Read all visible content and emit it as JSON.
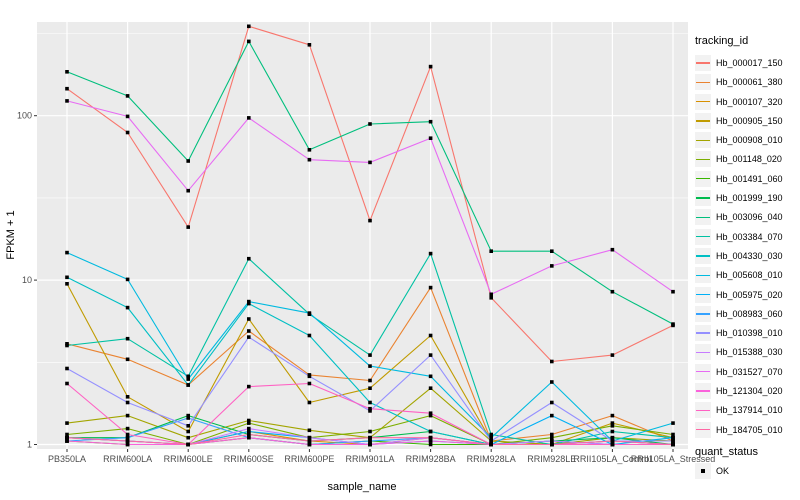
{
  "figure": {
    "panel_bg": "#EBEBEB",
    "grid_color": "#FFFFFF",
    "tick_color": "#333333",
    "axis_text_color": "#4D4D4D",
    "point_color": "#000000",
    "legend_key_bg": "#F2F2F2"
  },
  "chart_data": {
    "type": "line",
    "title": "",
    "xlabel": "sample_name",
    "ylabel": "FPKM + 1",
    "y_scale": "log10",
    "y_ticks": [
      "1",
      "10",
      "100"
    ],
    "y_tick_values": [
      1,
      10,
      100
    ],
    "y_minor_values": [
      3.1623,
      31.623,
      316.23
    ],
    "ylim": [
      0.93,
      380
    ],
    "grid": "on",
    "legend_position": "right",
    "categories": [
      "PB350LA",
      "RRIM600LA",
      "RRIM600LE",
      "RRIM600SE",
      "RRIM600PE",
      "RRIM901LA",
      "RRIM928BA",
      "RRIM928LA",
      "RRIM928LE",
      "RRII105LA_Control",
      "RRII105LA_Stressed"
    ],
    "series": [
      {
        "name": "Hb_000017_150",
        "color": "#F8766D",
        "values": [
          146,
          79,
          21,
          350,
          270,
          23,
          199,
          7.8,
          3.2,
          3.5,
          5.3
        ]
      },
      {
        "name": "Hb_000061_380",
        "color": "#EA8331",
        "values": [
          4.1,
          3.3,
          2.3,
          4.9,
          2.65,
          2.45,
          9.0,
          1.05,
          1.15,
          1.5,
          1.05
        ]
      },
      {
        "name": "Hb_000107_320",
        "color": "#D89000",
        "values": [
          1.1,
          1.05,
          1.0,
          1.2,
          1.05,
          1.0,
          1.1,
          1.0,
          1.0,
          1.05,
          1.0
        ]
      },
      {
        "name": "Hb_000905_150",
        "color": "#C09B00",
        "values": [
          9.5,
          1.95,
          1.2,
          5.8,
          1.8,
          2.2,
          4.6,
          1.05,
          1.0,
          1.35,
          1.1
        ]
      },
      {
        "name": "Hb_000908_010",
        "color": "#A3A500",
        "values": [
          1.35,
          1.5,
          1.1,
          1.4,
          1.22,
          1.1,
          2.2,
          1.05,
          1.0,
          1.1,
          1.05
        ]
      },
      {
        "name": "Hb_001148_020",
        "color": "#7CAE00",
        "values": [
          1.15,
          1.25,
          1.0,
          1.35,
          1.1,
          1.2,
          1.5,
          1.0,
          1.1,
          1.3,
          1.15
        ]
      },
      {
        "name": "Hb_001491_060",
        "color": "#39B600",
        "values": [
          1.05,
          1.0,
          1.0,
          1.1,
          1.0,
          1.05,
          1.0,
          1.0,
          1.0,
          1.0,
          1.0
        ]
      },
      {
        "name": "Hb_001999_190",
        "color": "#00BB4E",
        "values": [
          1.1,
          1.1,
          1.5,
          1.15,
          1.05,
          1.1,
          1.2,
          1.0,
          1.05,
          1.1,
          1.0
        ]
      },
      {
        "name": "Hb_003096_040",
        "color": "#00BF7D",
        "values": [
          185,
          132,
          53,
          283,
          62,
          89,
          92,
          15,
          15,
          8.5,
          5.4
        ]
      },
      {
        "name": "Hb_003384_070",
        "color": "#00C1A3",
        "values": [
          4.0,
          4.4,
          2.6,
          13.5,
          6.2,
          3.5,
          14.5,
          1.15,
          1.0,
          1.2,
          1.1
        ]
      },
      {
        "name": "Hb_004330_030",
        "color": "#00BFC4",
        "values": [
          10.4,
          6.8,
          2.3,
          7.2,
          4.6,
          1.8,
          1.2,
          1.0,
          1.05,
          1.0,
          1.0
        ]
      },
      {
        "name": "Hb_005608_010",
        "color": "#00BAE0",
        "values": [
          14.7,
          10.1,
          2.5,
          7.4,
          6.3,
          3.0,
          2.6,
          1.1,
          2.4,
          1.05,
          1.35
        ]
      },
      {
        "name": "Hb_005975_020",
        "color": "#00B0F6",
        "values": [
          1.1,
          1.05,
          1.0,
          1.2,
          1.1,
          1.0,
          1.05,
          1.0,
          1.5,
          1.0,
          1.1
        ]
      },
      {
        "name": "Hb_008983_060",
        "color": "#35A2FF",
        "values": [
          1.05,
          1.1,
          1.45,
          1.1,
          1.0,
          1.05,
          1.1,
          1.0,
          1.0,
          1.05,
          1.0
        ]
      },
      {
        "name": "Hb_010398_010",
        "color": "#9590FF",
        "values": [
          2.9,
          1.8,
          1.3,
          4.5,
          2.6,
          1.6,
          3.5,
          1.05,
          1.8,
          1.05,
          1.05
        ]
      },
      {
        "name": "Hb_015388_030",
        "color": "#C77CFF",
        "values": [
          1.1,
          1.05,
          1.0,
          1.25,
          1.1,
          1.0,
          1.1,
          1.0,
          1.05,
          1.0,
          1.0
        ]
      },
      {
        "name": "Hb_031527_070",
        "color": "#E76BF3",
        "values": [
          123,
          99,
          35,
          97,
          54,
          52,
          73,
          8.2,
          12.2,
          15.3,
          8.5
        ]
      },
      {
        "name": "Hb_121304_020",
        "color": "#FA62DB",
        "values": [
          1.05,
          1.0,
          1.0,
          1.1,
          1.0,
          1.0,
          1.05,
          1.0,
          1.0,
          1.0,
          1.0
        ]
      },
      {
        "name": "Hb_137914_010",
        "color": "#FF61C3",
        "values": [
          2.35,
          1.15,
          1.0,
          2.25,
          2.35,
          1.65,
          1.55,
          1.0,
          1.0,
          1.0,
          1.0
        ]
      },
      {
        "name": "Hb_184705_010",
        "color": "#FF67A4",
        "values": [
          1.1,
          1.05,
          1.0,
          1.15,
          1.05,
          1.1,
          1.1,
          1.0,
          1.0,
          1.05,
          1.0
        ]
      }
    ],
    "points": {
      "shape": "square",
      "legend_label": "OK"
    },
    "legend": {
      "color_title": "tracking_id",
      "shape_title": "quant_status",
      "shape_entries": [
        {
          "label": "OK"
        }
      ]
    }
  }
}
